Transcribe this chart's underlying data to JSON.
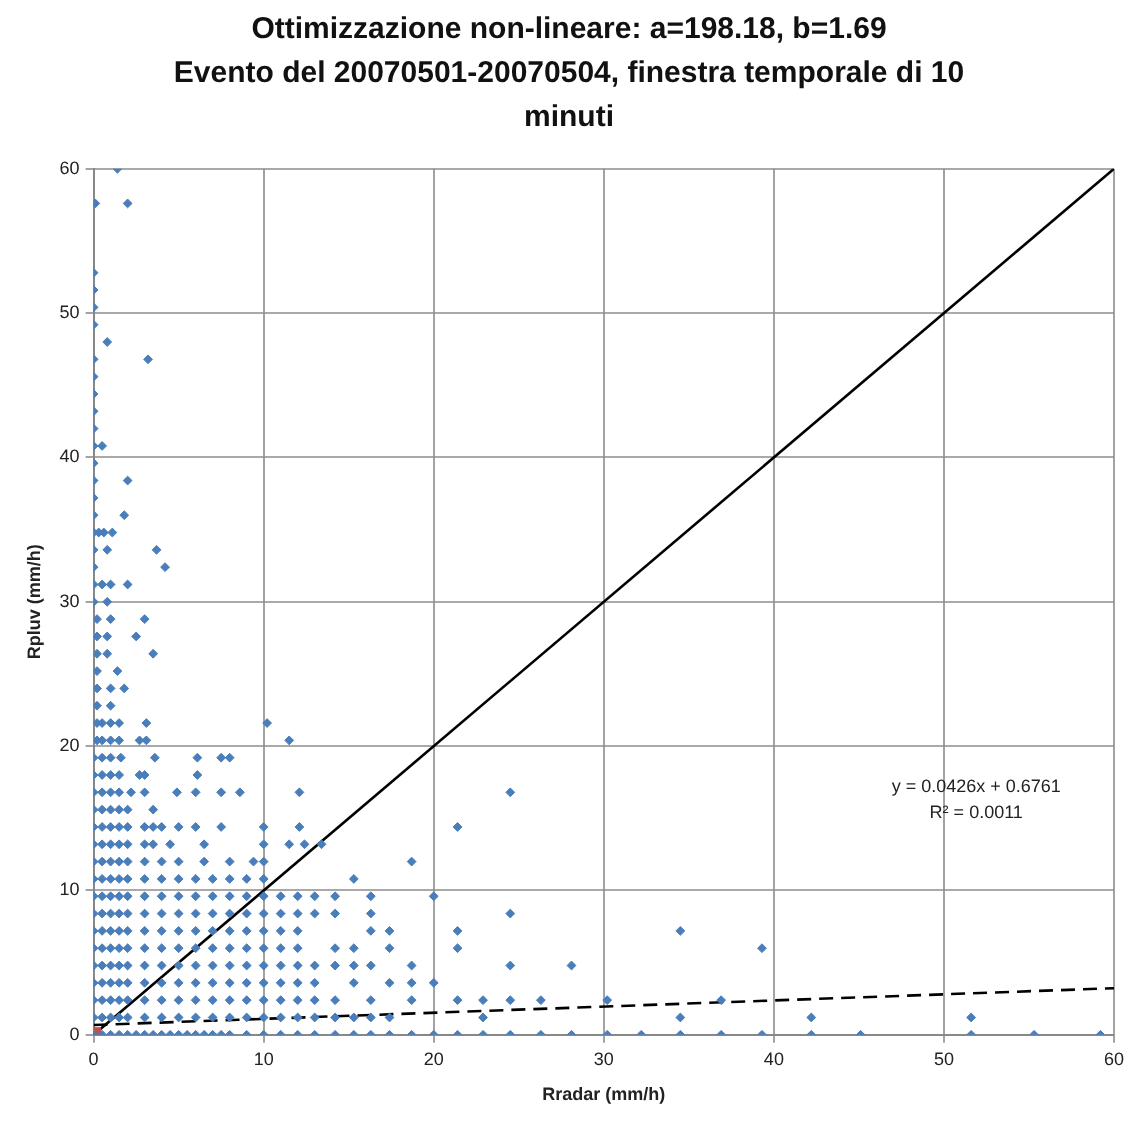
{
  "chart_data": {
    "type": "scatter",
    "title": "Ottimizzazione non-lineare: a=198.18, b=1.69",
    "subtitle": "Evento del 20070501-20070504, finestra temporale di 10 minuti",
    "xlabel": "Rradar (mm/h)",
    "ylabel": "Rpluv (mm/h)",
    "xlim": [
      0,
      60
    ],
    "xticks": [
      0,
      10,
      20,
      30,
      40,
      50,
      60
    ],
    "ylim": [
      0,
      60
    ],
    "yticks": [
      0,
      10,
      20,
      30,
      40,
      50,
      60
    ],
    "grid": true,
    "legend": false,
    "annotations": [
      "y = 0.0426x + 0.6761",
      "R² = 0.0011"
    ],
    "series": [
      {
        "type": "scatter",
        "color": "#4a7ebb",
        "marker": "diamond",
        "x": [
          0,
          0.5,
          1,
          1.5,
          2,
          2.5,
          3,
          3.5,
          4,
          4.5,
          5,
          5.5,
          6,
          6.5,
          7,
          7.5,
          8,
          9,
          10,
          11,
          12,
          13,
          14.2,
          15.3,
          16.3,
          17.4,
          18.7,
          20,
          21.4,
          22.9,
          24.5,
          26.3,
          28.1,
          30.2,
          32.2,
          34.5,
          36.9,
          39.3,
          42.2,
          45.1,
          51.6,
          55.3,
          59.2,
          0,
          0.5,
          1,
          1.5,
          2,
          3,
          4,
          5,
          6,
          7,
          8,
          9,
          10,
          11,
          12,
          13,
          14.2,
          15.3,
          16.3,
          17.4,
          22.9,
          34.5,
          42.2,
          51.6,
          0,
          0.5,
          1,
          1.5,
          2,
          3,
          4,
          5,
          6,
          7,
          8,
          9,
          10,
          11,
          12,
          13,
          14.2,
          16.3,
          18.7,
          21.4,
          22.9,
          24.5,
          26.3,
          30.2,
          36.9,
          0,
          0.5,
          1,
          1.5,
          2,
          3,
          4,
          5,
          6,
          7,
          8,
          9,
          10,
          11,
          12,
          13,
          15.3,
          17.4,
          18.7,
          20,
          0,
          0.5,
          1,
          1.5,
          2,
          3,
          4,
          5,
          6,
          7,
          8,
          9,
          10,
          11,
          12,
          13,
          14.2,
          15.3,
          16.3,
          18.7,
          24.5,
          28.1,
          0,
          0.5,
          1,
          1.5,
          2,
          3,
          4,
          5,
          6,
          7,
          8,
          9,
          10,
          11,
          12,
          14.2,
          15.3,
          17.4,
          21.4,
          39.3,
          0,
          0.5,
          1,
          1.5,
          2,
          3,
          4,
          5,
          6,
          7,
          8,
          9,
          10,
          11,
          12,
          16.3,
          17.4,
          21.4,
          34.5,
          0,
          0.5,
          1,
          1.5,
          2,
          3,
          4,
          5,
          6,
          7,
          8,
          9,
          10,
          11,
          12,
          13,
          14.2,
          16.3,
          24.5,
          0,
          0.5,
          1,
          1.5,
          2,
          3,
          4,
          5,
          6,
          7,
          8,
          9,
          10,
          11,
          12,
          13,
          14.2,
          16.3,
          20,
          0,
          0.5,
          1,
          1.5,
          2,
          3,
          4,
          5,
          6,
          7,
          8,
          9,
          10,
          15.3,
          0,
          0.5,
          1,
          1.5,
          2,
          3,
          4,
          5,
          6.5,
          8,
          9.4,
          10,
          18.7,
          0,
          0.5,
          1,
          1.5,
          2,
          3,
          3.5,
          4.5,
          6.5,
          10,
          11.5,
          12.4,
          13.4,
          0,
          0.5,
          1,
          1.5,
          2,
          3,
          3.5,
          4,
          5,
          6,
          7.5,
          10,
          12.1,
          21.4,
          0,
          0.5,
          1,
          1.5,
          2,
          3.5,
          0,
          0.5,
          1,
          1.5,
          2.2,
          3,
          4.9,
          6,
          7.5,
          8.6,
          12.1,
          24.5,
          0,
          0.5,
          1,
          1.5,
          2.7,
          3,
          6.1,
          0,
          0.5,
          1,
          1.6,
          3.6,
          6.1,
          7.5,
          8,
          0.2,
          0.5,
          1,
          1.5,
          2.7,
          3.1,
          11.5,
          0.2,
          0.5,
          1,
          1.5,
          3.1,
          10.2,
          0.2,
          1,
          0.2,
          1,
          1.8,
          0.2,
          1.4,
          0.2,
          0.8,
          3.5,
          0.2,
          0.8,
          2.5,
          0.2,
          1,
          3,
          0,
          0.8,
          0,
          0.5,
          1,
          2,
          0,
          4.2,
          0,
          0.8,
          3.7,
          0,
          0.3,
          0.6,
          1.1,
          0,
          1.8,
          0,
          0,
          2,
          0,
          0,
          0.5,
          0,
          0,
          0,
          0,
          0,
          3.2,
          0.8,
          0,
          0,
          0,
          0,
          0.1,
          2,
          1.4
        ],
        "values": [
          0,
          0,
          0,
          0,
          0,
          0,
          0,
          0,
          0,
          0,
          0,
          0,
          0,
          0,
          0,
          0,
          0,
          0,
          0,
          0,
          0,
          0,
          0,
          0,
          0,
          0,
          0,
          0,
          0,
          0,
          0,
          0,
          0,
          0,
          0,
          0,
          0,
          0,
          0,
          0,
          0,
          0,
          0,
          1.2,
          1.2,
          1.2,
          1.2,
          1.2,
          1.2,
          1.2,
          1.2,
          1.2,
          1.2,
          1.2,
          1.2,
          1.2,
          1.2,
          1.2,
          1.2,
          1.2,
          1.2,
          1.2,
          1.2,
          1.2,
          1.2,
          1.2,
          1.2,
          2.4,
          2.4,
          2.4,
          2.4,
          2.4,
          2.4,
          2.4,
          2.4,
          2.4,
          2.4,
          2.4,
          2.4,
          2.4,
          2.4,
          2.4,
          2.4,
          2.4,
          2.4,
          2.4,
          2.4,
          2.4,
          2.4,
          2.4,
          2.4,
          2.4,
          3.6,
          3.6,
          3.6,
          3.6,
          3.6,
          3.6,
          3.6,
          3.6,
          3.6,
          3.6,
          3.6,
          3.6,
          3.6,
          3.6,
          3.6,
          3.6,
          3.6,
          3.6,
          3.6,
          3.6,
          4.8,
          4.8,
          4.8,
          4.8,
          4.8,
          4.8,
          4.8,
          4.8,
          4.8,
          4.8,
          4.8,
          4.8,
          4.8,
          4.8,
          4.8,
          4.8,
          4.8,
          4.8,
          4.8,
          4.8,
          4.8,
          4.8,
          6,
          6,
          6,
          6,
          6,
          6,
          6,
          6,
          6,
          6,
          6,
          6,
          6,
          6,
          6,
          6,
          6,
          6,
          6,
          6,
          7.2,
          7.2,
          7.2,
          7.2,
          7.2,
          7.2,
          7.2,
          7.2,
          7.2,
          7.2,
          7.2,
          7.2,
          7.2,
          7.2,
          7.2,
          7.2,
          7.2,
          7.2,
          7.2,
          8.4,
          8.4,
          8.4,
          8.4,
          8.4,
          8.4,
          8.4,
          8.4,
          8.4,
          8.4,
          8.4,
          8.4,
          8.4,
          8.4,
          8.4,
          8.4,
          8.4,
          8.4,
          8.4,
          9.6,
          9.6,
          9.6,
          9.6,
          9.6,
          9.6,
          9.6,
          9.6,
          9.6,
          9.6,
          9.6,
          9.6,
          9.6,
          9.6,
          9.6,
          9.6,
          9.6,
          9.6,
          9.6,
          10.8,
          10.8,
          10.8,
          10.8,
          10.8,
          10.8,
          10.8,
          10.8,
          10.8,
          10.8,
          10.8,
          10.8,
          10.8,
          10.8,
          12,
          12,
          12,
          12,
          12,
          12,
          12,
          12,
          12,
          12,
          12,
          12,
          12,
          13.2,
          13.2,
          13.2,
          13.2,
          13.2,
          13.2,
          13.2,
          13.2,
          13.2,
          13.2,
          13.2,
          13.2,
          13.2,
          14.4,
          14.4,
          14.4,
          14.4,
          14.4,
          14.4,
          14.4,
          14.4,
          14.4,
          14.4,
          14.4,
          14.4,
          14.4,
          14.4,
          15.6,
          15.6,
          15.6,
          15.6,
          15.6,
          15.6,
          16.8,
          16.8,
          16.8,
          16.8,
          16.8,
          16.8,
          16.8,
          16.8,
          16.8,
          16.8,
          16.8,
          16.8,
          18,
          18,
          18,
          18,
          18,
          18,
          18,
          19.2,
          19.2,
          19.2,
          19.2,
          19.2,
          19.2,
          19.2,
          19.2,
          20.4,
          20.4,
          20.4,
          20.4,
          20.4,
          20.4,
          20.4,
          21.6,
          21.6,
          21.6,
          21.6,
          21.6,
          21.6,
          22.8,
          22.8,
          24,
          24,
          24,
          25.2,
          25.2,
          26.4,
          26.4,
          26.4,
          27.6,
          27.6,
          27.6,
          28.8,
          28.8,
          28.8,
          30,
          30,
          31.2,
          31.2,
          31.2,
          31.2,
          32.4,
          32.4,
          33.6,
          33.6,
          33.6,
          34.8,
          34.8,
          34.8,
          34.8,
          36,
          36,
          37.2,
          38.4,
          38.4,
          39.6,
          40.8,
          40.8,
          42,
          43.2,
          44.4,
          45.6,
          46.8,
          46.8,
          48,
          49.2,
          50.4,
          51.6,
          52.8,
          57.6,
          57.6,
          60
        ]
      },
      {
        "type": "scatter",
        "color": "#c0504d",
        "marker": "square",
        "x": [
          0
        ],
        "values": [
          0
        ]
      },
      {
        "type": "line",
        "color": "#000000",
        "marker": "none",
        "line_style": "solid",
        "x": [
          0,
          60
        ],
        "values": [
          0,
          60
        ]
      },
      {
        "type": "line",
        "color": "#000000",
        "marker": "none",
        "line_style": "dashed",
        "x": [
          0,
          60
        ],
        "values": [
          0.68,
          3.23
        ]
      }
    ]
  }
}
